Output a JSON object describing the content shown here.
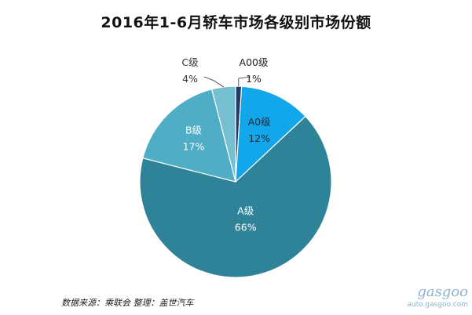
{
  "chart_data": {
    "type": "pie",
    "title": "2016年1-6月轿车市场各级别市场份额",
    "categories": [
      "A00级",
      "A0级",
      "A级",
      "B级",
      "C级"
    ],
    "values": [
      1,
      12,
      66,
      17,
      4
    ],
    "value_labels": [
      "1%",
      "12%",
      "66%",
      "17%",
      "4%"
    ],
    "colors": [
      "#1f3b6b",
      "#12a6ea",
      "#2f8398",
      "#4fadc6",
      "#76bfd1"
    ],
    "label_colors": [
      "#222222",
      "#1b2a3a",
      "#ffffff",
      "#ffffff",
      "#333333"
    ],
    "legend": "none"
  },
  "source": "数据来源：乘联会   整理：盖世汽车",
  "watermark": {
    "logo": "gasgoo",
    "url": "auto.gasgoo.com"
  }
}
